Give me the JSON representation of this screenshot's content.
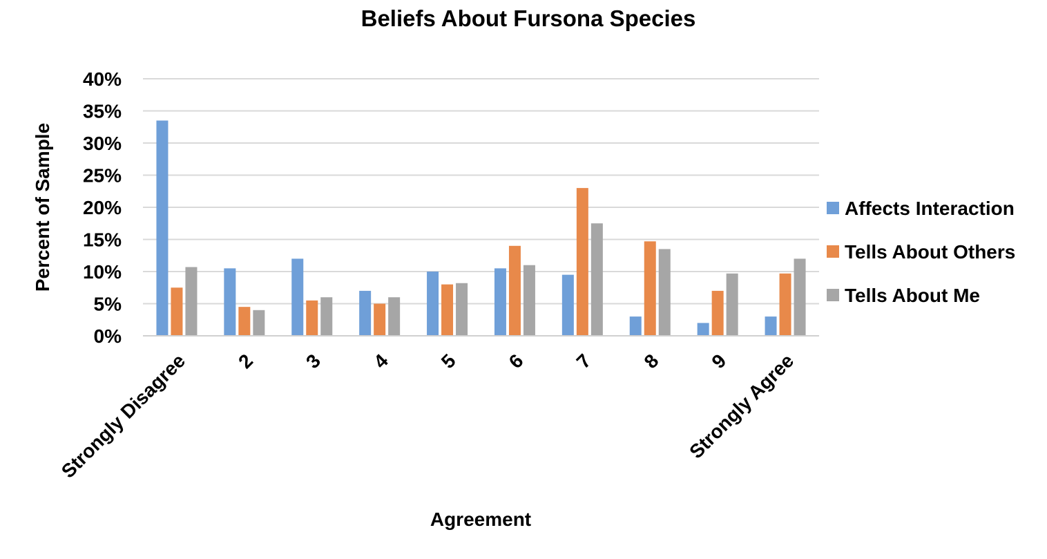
{
  "chart_data": {
    "type": "bar",
    "title": "Beliefs About Fursona Species",
    "xlabel": "Agreement",
    "ylabel": "Percent of Sample",
    "categories": [
      "Strongly Disagree",
      "2",
      "3",
      "4",
      "5",
      "6",
      "7",
      "8",
      "9",
      "Strongly Agree"
    ],
    "series": [
      {
        "name": "Affects Interaction",
        "color": "#6f9fd8",
        "values": [
          33.5,
          10.5,
          12,
          7,
          10,
          10.5,
          9.5,
          3,
          2,
          3
        ]
      },
      {
        "name": "Tells About Others",
        "color": "#e8894a",
        "values": [
          7.5,
          4.5,
          5.5,
          5,
          8,
          14,
          23,
          14.7,
          7,
          9.7
        ]
      },
      {
        "name": "Tells About Me",
        "color": "#a6a6a6",
        "values": [
          10.7,
          4,
          6,
          6,
          8.2,
          11,
          17.5,
          13.5,
          9.7,
          12
        ]
      }
    ],
    "ylim": [
      0,
      40
    ],
    "yticks": [
      0,
      5,
      10,
      15,
      20,
      25,
      30,
      35,
      40
    ],
    "ytick_format": "percent",
    "grid": true,
    "legend": "right"
  }
}
